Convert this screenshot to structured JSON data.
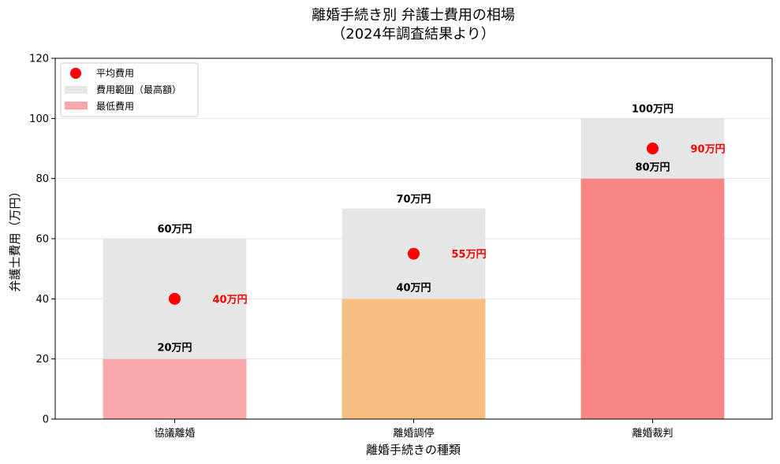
{
  "chart_data": {
    "type": "bar",
    "title_lines": [
      "離婚手続き別 弁護士費用の相場",
      "（2024年調査結果より）"
    ],
    "xlabel": "離婚手続きの種類",
    "ylabel": "弁護士費用（万円）",
    "ylim": [
      0,
      120
    ],
    "yticks": [
      "0",
      "20",
      "40",
      "60",
      "80",
      "100",
      "120"
    ],
    "categories": [
      "協議離婚",
      "離婚調停",
      "離婚裁判"
    ],
    "series": [
      {
        "name": "最低費用",
        "values": [
          20,
          40,
          80
        ],
        "colors": [
          "#f9a8aa",
          "#f7be82",
          "#f88685"
        ],
        "labels": [
          "20万円",
          "40万円",
          "80万円"
        ]
      },
      {
        "name": "費用範囲（最高額）",
        "values": [
          60,
          70,
          100
        ],
        "color": "#e6e6e6",
        "labels": [
          "60万円",
          "70万円",
          "100万円"
        ]
      },
      {
        "name": "平均費用",
        "values": [
          40,
          55,
          90
        ],
        "color": "#ff0000",
        "labels": [
          "40万円",
          "55万円",
          "90万円"
        ]
      }
    ],
    "grid": true,
    "legend_position": "upper-left",
    "legend": [
      {
        "label": "平均費用",
        "marker": "circle",
        "color": "#ff0000"
      },
      {
        "label": "費用範囲（最高額）",
        "marker": "rect",
        "color": "#e6e6e6"
      },
      {
        "label": "最低費用",
        "marker": "rect",
        "color": "#f9a8aa"
      }
    ]
  }
}
